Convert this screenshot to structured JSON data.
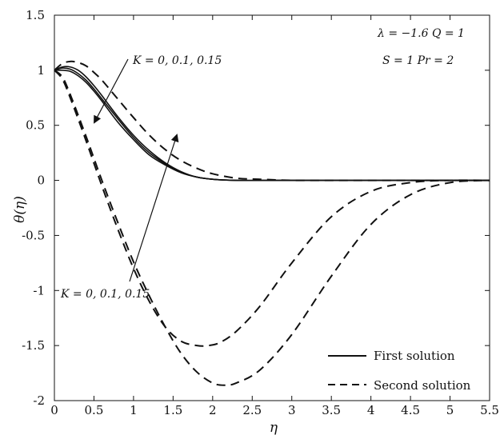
{
  "chart_data": {
    "type": "line",
    "xlabel": "η",
    "ylabel": "θ(η)",
    "xlim": [
      0,
      5.5
    ],
    "ylim": [
      -2,
      1.5
    ],
    "x_ticks": [
      "0",
      "0.5",
      "1",
      "1.5",
      "2",
      "2.5",
      "3",
      "3.5",
      "4",
      "4.5",
      "5",
      "5.5"
    ],
    "y_ticks": [
      "1.5",
      "1",
      "0.5",
      "0",
      "-0.5",
      "-1",
      "-1.5",
      "-2"
    ],
    "params_line1": "λ = −1.6   Q = 1",
    "params_line2": "S = 1   Pr = 2",
    "annotation_top": "K = 0, 0.1, 0.15",
    "annotation_bottom": "K = 0, 0.1, 0.15",
    "legend": {
      "placement": "bottom-right",
      "entries": [
        {
          "label": "First solution",
          "style": "solid"
        },
        {
          "label": "Second solution",
          "style": "dashed"
        }
      ]
    },
    "series": [
      {
        "group": "first",
        "style": "solid",
        "x": [
          0,
          0.1,
          0.2,
          0.3,
          0.4,
          0.5,
          0.6,
          0.8,
          1.0,
          1.2,
          1.4,
          1.6,
          1.8,
          2.0,
          2.3,
          2.6,
          3.0,
          4.0,
          5.5
        ],
        "y": [
          1.0,
          1.03,
          1.03,
          1.0,
          0.94,
          0.86,
          0.77,
          0.58,
          0.41,
          0.27,
          0.16,
          0.08,
          0.03,
          0.01,
          0.0,
          0.0,
          0.0,
          0.0,
          0.0
        ]
      },
      {
        "group": "first",
        "style": "solid",
        "x": [
          0,
          0.1,
          0.2,
          0.3,
          0.4,
          0.5,
          0.6,
          0.8,
          1.0,
          1.2,
          1.4,
          1.6,
          1.8,
          2.0,
          2.3,
          2.6,
          3.0,
          4.0,
          5.5
        ],
        "y": [
          1.0,
          1.02,
          1.01,
          0.97,
          0.91,
          0.83,
          0.74,
          0.56,
          0.39,
          0.25,
          0.15,
          0.07,
          0.03,
          0.01,
          0.0,
          0.0,
          0.0,
          0.0,
          0.0
        ]
      },
      {
        "group": "first",
        "style": "solid",
        "x": [
          0,
          0.1,
          0.2,
          0.3,
          0.4,
          0.5,
          0.6,
          0.8,
          1.0,
          1.2,
          1.4,
          1.6,
          1.8,
          2.0,
          2.3,
          2.6,
          3.0,
          4.0,
          5.5
        ],
        "y": [
          1.0,
          1.0,
          0.99,
          0.95,
          0.89,
          0.81,
          0.72,
          0.53,
          0.37,
          0.23,
          0.14,
          0.07,
          0.03,
          0.01,
          0.0,
          0.0,
          0.0,
          0.0,
          0.0
        ]
      },
      {
        "group": "second",
        "style": "dashed",
        "x": [
          0,
          0.1,
          0.2,
          0.3,
          0.4,
          0.5,
          0.6,
          0.8,
          1.0,
          1.2,
          1.4,
          1.6,
          1.8,
          2.0,
          2.3,
          2.6,
          3.0,
          3.5,
          4.0,
          4.5,
          5.5
        ],
        "y": [
          1.0,
          1.06,
          1.08,
          1.07,
          1.04,
          0.98,
          0.91,
          0.74,
          0.57,
          0.41,
          0.28,
          0.18,
          0.11,
          0.06,
          0.02,
          0.01,
          0.0,
          0.0,
          0.0,
          0.0,
          0.0
        ]
      },
      {
        "group": "second",
        "style": "dashed",
        "x": [
          0,
          0.1,
          0.2,
          0.4,
          0.6,
          0.8,
          1.0,
          1.2,
          1.4,
          1.6,
          1.8,
          1.95,
          2.1,
          2.3,
          2.6,
          3.0,
          3.5,
          4.0,
          4.5,
          5.0,
          5.5
        ],
        "y": [
          1.0,
          0.92,
          0.75,
          0.36,
          -0.05,
          -0.44,
          -0.8,
          -1.1,
          -1.33,
          -1.46,
          -1.5,
          -1.5,
          -1.47,
          -1.37,
          -1.14,
          -0.75,
          -0.33,
          -0.1,
          -0.02,
          0.0,
          0.0
        ]
      },
      {
        "group": "second",
        "style": "dashed",
        "x": [
          0,
          0.1,
          0.2,
          0.4,
          0.6,
          0.8,
          1.0,
          1.2,
          1.4,
          1.6,
          1.8,
          2.0,
          2.15,
          2.3,
          2.6,
          3.0,
          3.5,
          4.0,
          4.5,
          5.0,
          5.5
        ],
        "y": [
          1.0,
          0.94,
          0.78,
          0.4,
          0.0,
          -0.38,
          -0.74,
          -1.05,
          -1.33,
          -1.57,
          -1.74,
          -1.84,
          -1.86,
          -1.84,
          -1.72,
          -1.4,
          -0.87,
          -0.4,
          -0.13,
          -0.02,
          0.0
        ]
      }
    ]
  }
}
